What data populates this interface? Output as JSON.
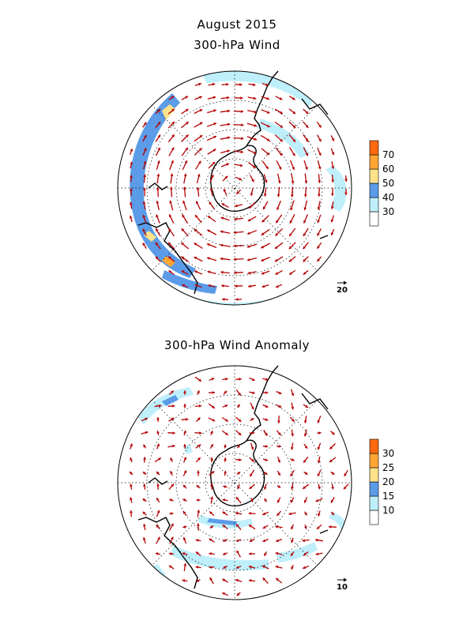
{
  "header": {
    "month_title": "August 2015"
  },
  "maps": [
    {
      "id": "wind",
      "title": "300-hPa Wind",
      "reference_vector_label": "20",
      "colorbar": {
        "labels": [
          "30",
          "40",
          "50",
          "60",
          "70"
        ],
        "colors": [
          "#ffffff",
          "#bfeffa",
          "#5b9be8",
          "#ffe28a",
          "#ffa634",
          "#ff6a10"
        ]
      }
    },
    {
      "id": "anomaly",
      "title": "300-hPa Wind Anomaly",
      "reference_vector_label": "10",
      "colorbar": {
        "labels": [
          "10",
          "15",
          "20",
          "25",
          "30"
        ],
        "colors": [
          "#ffffff",
          "#bfeffa",
          "#5b9be8",
          "#ffe28a",
          "#ffa634",
          "#ff6a10"
        ]
      }
    }
  ],
  "style": {
    "arrow_color": "#b40000",
    "coast_color": "#000000"
  }
}
